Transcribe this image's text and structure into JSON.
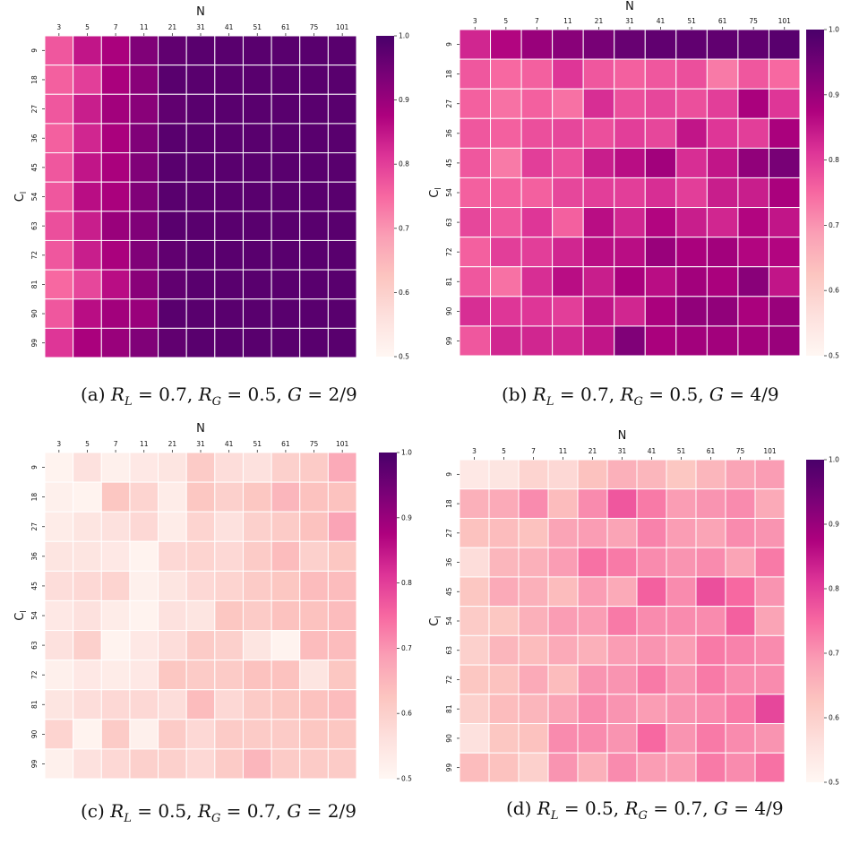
{
  "colors": {
    "colormap": "RdPu",
    "stops": [
      "#fff7f3",
      "#fde0dd",
      "#fcc5c0",
      "#fa9fb5",
      "#f768a1",
      "#dd3497",
      "#ae017e",
      "#7a0177",
      "#49006a"
    ],
    "grid_line": "#ffffff",
    "text": "#111111"
  },
  "chart_data": [
    {
      "type": "heatmap",
      "xlabel": "N",
      "ylabel": "C_l",
      "x_ticks": [
        "3",
        "5",
        "7",
        "11",
        "21",
        "31",
        "41",
        "51",
        "61",
        "75",
        "101"
      ],
      "y_ticks": [
        "9",
        "18",
        "27",
        "36",
        "45",
        "54",
        "63",
        "72",
        "81",
        "90",
        "99"
      ],
      "colorbar": {
        "range": [
          0.5,
          1.0
        ],
        "ticks": [
          "0.5",
          "0.6",
          "0.7",
          "0.8",
          "0.9",
          "1.0"
        ]
      },
      "caption": {
        "label": "(a)",
        "parts": [
          [
            "R",
            "L",
            "0.7"
          ],
          [
            "R",
            "G",
            "0.5"
          ],
          [
            "G",
            "",
            "2/9"
          ]
        ]
      },
      "values": [
        [
          0.77,
          0.85,
          0.88,
          0.93,
          0.97,
          0.98,
          0.98,
          0.98,
          0.98,
          0.98,
          0.98
        ],
        [
          0.76,
          0.8,
          0.88,
          0.92,
          0.98,
          0.98,
          0.98,
          0.98,
          0.98,
          0.98,
          0.98
        ],
        [
          0.77,
          0.84,
          0.89,
          0.92,
          0.97,
          0.98,
          0.98,
          0.98,
          0.98,
          0.98,
          0.98
        ],
        [
          0.76,
          0.83,
          0.88,
          0.93,
          0.98,
          0.98,
          0.98,
          0.98,
          0.98,
          0.98,
          0.98
        ],
        [
          0.77,
          0.85,
          0.88,
          0.93,
          0.98,
          0.98,
          0.98,
          0.98,
          0.98,
          0.98,
          0.98
        ],
        [
          0.77,
          0.86,
          0.88,
          0.93,
          0.98,
          0.98,
          0.98,
          0.98,
          0.98,
          0.98,
          0.98
        ],
        [
          0.78,
          0.84,
          0.9,
          0.93,
          0.98,
          0.98,
          0.98,
          0.98,
          0.98,
          0.98,
          0.98
        ],
        [
          0.77,
          0.84,
          0.88,
          0.93,
          0.97,
          0.98,
          0.98,
          0.98,
          0.98,
          0.98,
          0.98
        ],
        [
          0.75,
          0.79,
          0.86,
          0.92,
          0.97,
          0.98,
          0.98,
          0.98,
          0.98,
          0.98,
          0.98
        ],
        [
          0.77,
          0.86,
          0.89,
          0.9,
          0.98,
          0.98,
          0.98,
          0.98,
          0.98,
          0.98,
          0.98
        ],
        [
          0.81,
          0.88,
          0.9,
          0.93,
          0.97,
          0.98,
          0.98,
          0.98,
          0.98,
          0.98,
          0.98
        ]
      ]
    },
    {
      "type": "heatmap",
      "xlabel": "N",
      "ylabel": "C_l",
      "x_ticks": [
        "3",
        "5",
        "7",
        "11",
        "21",
        "31",
        "41",
        "51",
        "61",
        "75",
        "101"
      ],
      "y_ticks": [
        "9",
        "18",
        "27",
        "36",
        "45",
        "54",
        "63",
        "72",
        "81",
        "90",
        "99"
      ],
      "colorbar": {
        "range": [
          0.5,
          1.0
        ],
        "ticks": [
          "0.5",
          "0.6",
          "0.7",
          "0.8",
          "0.9",
          "1.0"
        ]
      },
      "caption": {
        "label": "(b)",
        "parts": [
          [
            "R",
            "L",
            "0.7"
          ],
          [
            "R",
            "G",
            "0.5"
          ],
          [
            "G",
            "",
            "4/9"
          ]
        ]
      },
      "values": [
        [
          0.83,
          0.87,
          0.9,
          0.92,
          0.94,
          0.96,
          0.97,
          0.97,
          0.97,
          0.97,
          0.98
        ],
        [
          0.77,
          0.75,
          0.76,
          0.81,
          0.77,
          0.76,
          0.77,
          0.78,
          0.73,
          0.77,
          0.75
        ],
        [
          0.76,
          0.74,
          0.76,
          0.74,
          0.82,
          0.78,
          0.79,
          0.78,
          0.8,
          0.88,
          0.81
        ],
        [
          0.77,
          0.76,
          0.78,
          0.79,
          0.78,
          0.8,
          0.79,
          0.85,
          0.81,
          0.8,
          0.88
        ],
        [
          0.77,
          0.73,
          0.8,
          0.78,
          0.84,
          0.86,
          0.89,
          0.82,
          0.85,
          0.91,
          0.94
        ],
        [
          0.76,
          0.76,
          0.76,
          0.79,
          0.8,
          0.8,
          0.82,
          0.8,
          0.84,
          0.84,
          0.88
        ],
        [
          0.79,
          0.77,
          0.81,
          0.76,
          0.86,
          0.83,
          0.87,
          0.84,
          0.83,
          0.87,
          0.85
        ],
        [
          0.76,
          0.8,
          0.8,
          0.83,
          0.86,
          0.86,
          0.9,
          0.88,
          0.89,
          0.87,
          0.87
        ],
        [
          0.77,
          0.74,
          0.82,
          0.86,
          0.84,
          0.88,
          0.86,
          0.89,
          0.88,
          0.92,
          0.85
        ],
        [
          0.82,
          0.81,
          0.81,
          0.8,
          0.85,
          0.83,
          0.88,
          0.91,
          0.91,
          0.88,
          0.9
        ],
        [
          0.77,
          0.83,
          0.83,
          0.83,
          0.85,
          0.93,
          0.88,
          0.89,
          0.89,
          0.89,
          0.9
        ]
      ]
    },
    {
      "type": "heatmap",
      "xlabel": "N",
      "ylabel": "C_l",
      "x_ticks": [
        "3",
        "5",
        "7",
        "11",
        "21",
        "31",
        "41",
        "51",
        "61",
        "75",
        "101"
      ],
      "y_ticks": [
        "9",
        "18",
        "27",
        "36",
        "45",
        "54",
        "63",
        "72",
        "81",
        "90",
        "99"
      ],
      "colorbar": {
        "range": [
          0.5,
          1.0
        ],
        "ticks": [
          "0.5",
          "0.6",
          "0.7",
          "0.8",
          "0.9",
          "1.0"
        ]
      },
      "caption": {
        "label": "(c)",
        "parts": [
          [
            "R",
            "L",
            "0.5"
          ],
          [
            "R",
            "G",
            "0.7"
          ],
          [
            "G",
            "",
            "2/9"
          ]
        ]
      },
      "values": [
        [
          0.51,
          0.56,
          0.52,
          0.54,
          0.55,
          0.61,
          0.57,
          0.56,
          0.6,
          0.61,
          0.67
        ],
        [
          0.52,
          0.51,
          0.62,
          0.59,
          0.53,
          0.62,
          0.6,
          0.62,
          0.65,
          0.63,
          0.63
        ],
        [
          0.53,
          0.55,
          0.56,
          0.58,
          0.53,
          0.59,
          0.56,
          0.6,
          0.61,
          0.63,
          0.68
        ],
        [
          0.55,
          0.55,
          0.54,
          0.51,
          0.58,
          0.59,
          0.58,
          0.61,
          0.64,
          0.6,
          0.62
        ],
        [
          0.57,
          0.58,
          0.59,
          0.52,
          0.55,
          0.58,
          0.59,
          0.61,
          0.62,
          0.64,
          0.64
        ],
        [
          0.54,
          0.56,
          0.53,
          0.51,
          0.56,
          0.55,
          0.62,
          0.61,
          0.63,
          0.63,
          0.64
        ],
        [
          0.56,
          0.6,
          0.51,
          0.54,
          0.57,
          0.61,
          0.6,
          0.55,
          0.51,
          0.64,
          0.64
        ],
        [
          0.52,
          0.54,
          0.53,
          0.54,
          0.62,
          0.61,
          0.61,
          0.63,
          0.63,
          0.55,
          0.62
        ],
        [
          0.55,
          0.57,
          0.58,
          0.58,
          0.57,
          0.64,
          0.58,
          0.61,
          0.62,
          0.63,
          0.64
        ],
        [
          0.59,
          0.51,
          0.61,
          0.52,
          0.61,
          0.58,
          0.61,
          0.61,
          0.61,
          0.62,
          0.62
        ],
        [
          0.52,
          0.56,
          0.58,
          0.6,
          0.6,
          0.58,
          0.61,
          0.65,
          0.61,
          0.61,
          0.61
        ]
      ]
    },
    {
      "type": "heatmap",
      "xlabel": "N",
      "ylabel": "C_l",
      "x_ticks": [
        "3",
        "5",
        "7",
        "11",
        "21",
        "31",
        "41",
        "51",
        "61",
        "75",
        "101"
      ],
      "y_ticks": [
        "9",
        "18",
        "27",
        "36",
        "45",
        "54",
        "63",
        "72",
        "81",
        "90",
        "99"
      ],
      "colorbar": {
        "range": [
          0.5,
          1.0
        ],
        "ticks": [
          "0.5",
          "0.6",
          "0.7",
          "0.8",
          "0.9",
          "1.0"
        ]
      },
      "caption": {
        "label": "(d)",
        "parts": [
          [
            "R",
            "L",
            "0.5"
          ],
          [
            "R",
            "G",
            "0.7"
          ],
          [
            "G",
            "",
            "4/9"
          ]
        ]
      },
      "values": [
        [
          0.54,
          0.55,
          0.59,
          0.58,
          0.63,
          0.66,
          0.65,
          0.62,
          0.65,
          0.68,
          0.69
        ],
        [
          0.66,
          0.67,
          0.71,
          0.64,
          0.71,
          0.77,
          0.73,
          0.69,
          0.7,
          0.71,
          0.67
        ],
        [
          0.63,
          0.64,
          0.63,
          0.68,
          0.69,
          0.68,
          0.72,
          0.69,
          0.68,
          0.71,
          0.7
        ],
        [
          0.57,
          0.65,
          0.66,
          0.69,
          0.74,
          0.73,
          0.71,
          0.7,
          0.71,
          0.68,
          0.73
        ],
        [
          0.62,
          0.67,
          0.66,
          0.64,
          0.69,
          0.67,
          0.76,
          0.71,
          0.78,
          0.75,
          0.7
        ],
        [
          0.61,
          0.62,
          0.66,
          0.69,
          0.69,
          0.73,
          0.71,
          0.71,
          0.71,
          0.76,
          0.68
        ],
        [
          0.6,
          0.65,
          0.64,
          0.67,
          0.66,
          0.69,
          0.7,
          0.69,
          0.73,
          0.72,
          0.71
        ],
        [
          0.62,
          0.63,
          0.67,
          0.64,
          0.7,
          0.7,
          0.73,
          0.7,
          0.73,
          0.71,
          0.71
        ],
        [
          0.6,
          0.64,
          0.65,
          0.68,
          0.71,
          0.7,
          0.69,
          0.7,
          0.71,
          0.73,
          0.79
        ],
        [
          0.56,
          0.62,
          0.63,
          0.71,
          0.71,
          0.7,
          0.75,
          0.7,
          0.73,
          0.71,
          0.7
        ],
        [
          0.64,
          0.63,
          0.6,
          0.7,
          0.66,
          0.71,
          0.69,
          0.69,
          0.73,
          0.71,
          0.74
        ]
      ]
    }
  ]
}
